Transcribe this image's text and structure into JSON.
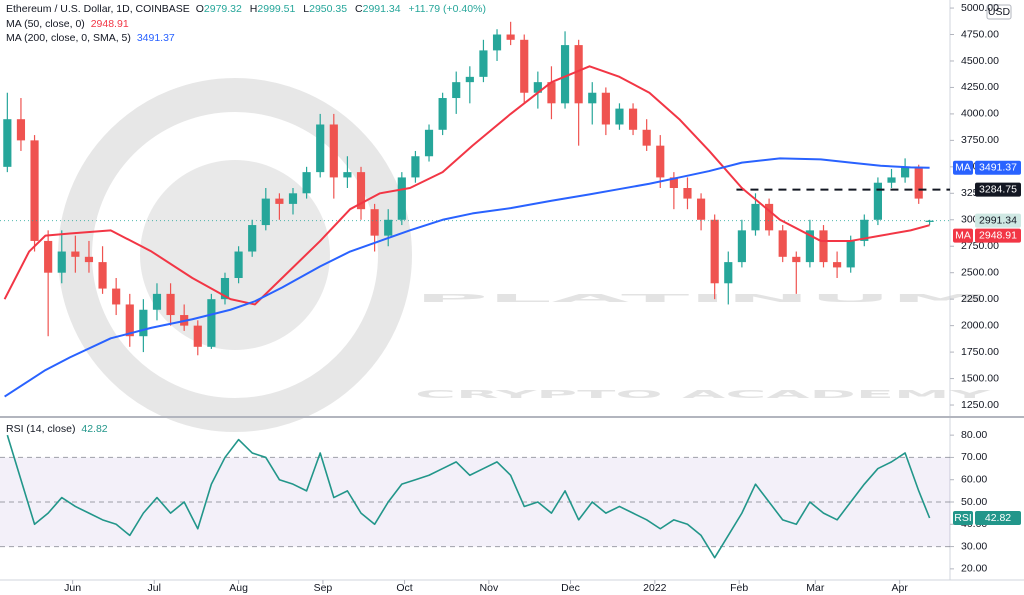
{
  "chart_data": [
    {
      "type": "candlestick",
      "title": "Ethereum / U.S. Dollar, 1D, COINBASE",
      "ohlc_prefixes": [
        "O",
        "H",
        "L",
        "C"
      ],
      "change": "+11.79 (+0.40%)",
      "unit": "USD",
      "watermark": [
        "PLATINUM",
        "CRYPTO ACADEMY"
      ],
      "up_color": "#26a69a",
      "down_color": "#ef5350",
      "xlim": [
        -0.7,
        348.5
      ],
      "ylim": [
        1203,
        5076
      ],
      "yticks": [
        {
          "value": 1250,
          "label": "1250.00"
        },
        {
          "value": 1500,
          "label": "1500.00"
        },
        {
          "value": 1750,
          "label": "1750.00"
        },
        {
          "value": 2000,
          "label": "2000.00"
        },
        {
          "value": 2250,
          "label": "2250.00"
        },
        {
          "value": 2500,
          "label": "2500.00"
        },
        {
          "value": 2750,
          "label": "2750.00"
        },
        {
          "value": 3000,
          "label": "3000.00"
        },
        {
          "value": 3250,
          "label": "3250.00"
        },
        {
          "value": 3500,
          "label": "3500.00"
        },
        {
          "value": 3750,
          "label": "3750.00"
        },
        {
          "value": 4000,
          "label": "4000.00"
        },
        {
          "value": 4250,
          "label": "4250.00"
        },
        {
          "value": 4500,
          "label": "4500.00"
        },
        {
          "value": 4750,
          "label": "4750.00"
        },
        {
          "value": 5000,
          "label": "5000.00"
        }
      ],
      "x": [
        2,
        7,
        12,
        17,
        22,
        27,
        32,
        37,
        42,
        47,
        52,
        57,
        62,
        67,
        72,
        77,
        82,
        87,
        92,
        97,
        102,
        107,
        112,
        117,
        122,
        127,
        132,
        137,
        142,
        147,
        152,
        157,
        162,
        167,
        172,
        177,
        182,
        187,
        192,
        197,
        202,
        207,
        212,
        217,
        222,
        227,
        232,
        237,
        242,
        247,
        252,
        257,
        262,
        267,
        272,
        277,
        282,
        287,
        292,
        297,
        302,
        307,
        312,
        317,
        322,
        327,
        332,
        337,
        341
      ],
      "open": [
        3500,
        3950,
        3750,
        2800,
        2500,
        2700,
        2650,
        2600,
        2350,
        2200,
        1900,
        2150,
        2300,
        2100,
        2000,
        1800,
        2250,
        2450,
        2700,
        2950,
        3200,
        3150,
        3250,
        3450,
        3900,
        3400,
        3450,
        3100,
        2850,
        3000,
        3400,
        3600,
        3850,
        4150,
        4300,
        4350,
        4600,
        4750,
        4700,
        4200,
        4300,
        4100,
        4650,
        4100,
        4200,
        3900,
        4050,
        3850,
        3700,
        3400,
        3300,
        3200,
        3000,
        2400,
        2600,
        2900,
        3150,
        2900,
        2650,
        2600,
        2900,
        2600,
        2550,
        2800,
        3000,
        3350,
        3400,
        3500,
        2979.32
      ],
      "high": [
        4200,
        4150,
        3800,
        2900,
        2900,
        2850,
        2800,
        2750,
        2450,
        2300,
        2250,
        2400,
        2400,
        2200,
        2050,
        2300,
        2500,
        2750,
        3000,
        3300,
        3250,
        3300,
        3500,
        4000,
        4000,
        3600,
        3500,
        3150,
        3100,
        3450,
        3650,
        3900,
        4200,
        4400,
        4450,
        4700,
        4800,
        4870,
        4750,
        4400,
        4450,
        4780,
        4700,
        4300,
        4250,
        4100,
        4100,
        3950,
        3800,
        3450,
        3400,
        3250,
        3050,
        2700,
        3000,
        3250,
        3200,
        2950,
        2700,
        3000,
        2950,
        2700,
        2850,
        3050,
        3400,
        3480,
        3580,
        3520,
        2999.51
      ],
      "low": [
        3450,
        3650,
        2700,
        1900,
        2400,
        2500,
        2500,
        2300,
        2100,
        1800,
        1750,
        2050,
        2000,
        1950,
        1720,
        1780,
        2200,
        2400,
        2650,
        2900,
        3000,
        3050,
        3200,
        3400,
        3200,
        3300,
        3000,
        2700,
        2750,
        2950,
        3350,
        3550,
        3800,
        4000,
        4100,
        4300,
        4500,
        4650,
        4100,
        4050,
        3950,
        4050,
        3700,
        3900,
        3800,
        3850,
        3800,
        3650,
        3300,
        3100,
        3100,
        2900,
        2250,
        2200,
        2550,
        2850,
        2850,
        2600,
        2300,
        2550,
        2550,
        2450,
        2500,
        2750,
        2950,
        3300,
        3350,
        3150,
        2950.35
      ],
      "close": [
        3950,
        3750,
        2800,
        2500,
        2700,
        2650,
        2600,
        2350,
        2200,
        1900,
        2150,
        2300,
        2100,
        2000,
        1800,
        2250,
        2450,
        2700,
        2950,
        3200,
        3150,
        3250,
        3450,
        3900,
        3400,
        3450,
        3100,
        2850,
        3000,
        3400,
        3600,
        3850,
        4150,
        4300,
        4350,
        4600,
        4750,
        4700,
        4200,
        4300,
        4100,
        4650,
        4100,
        4200,
        3900,
        4050,
        3850,
        3700,
        3400,
        3300,
        3200,
        3000,
        2400,
        2600,
        2900,
        3150,
        2900,
        2650,
        2600,
        2900,
        2600,
        2550,
        2800,
        3000,
        3350,
        3400,
        3500,
        3200,
        2991.34
      ],
      "series": [
        {
          "name": "MA (50, close, 0)",
          "tag_label": "MA",
          "color": "#f23645",
          "x": [
            1,
            10,
            16,
            25,
            40,
            55,
            70,
            84,
            93,
            103,
            117,
            128,
            139,
            150,
            162,
            173,
            187,
            202,
            216,
            227,
            238,
            249,
            260,
            272,
            286,
            301,
            312,
            323,
            334,
            341
          ],
          "values": [
            2250,
            2700,
            2850,
            2870,
            2900,
            2700,
            2450,
            2250,
            2200,
            2450,
            2800,
            3100,
            3250,
            3300,
            3450,
            3700,
            4000,
            4300,
            4450,
            4350,
            4200,
            3950,
            3650,
            3300,
            3000,
            2800,
            2800,
            2850,
            2900,
            2948.91
          ]
        },
        {
          "name": "MA (200, close, 0, SMA, 5)",
          "tag_label": "MA",
          "color": "#2962ff",
          "x": [
            1,
            10,
            16,
            25,
            40,
            55,
            70,
            84,
            93,
            103,
            117,
            128,
            139,
            150,
            162,
            173,
            187,
            202,
            216,
            227,
            238,
            249,
            260,
            272,
            286,
            301,
            312,
            323,
            334,
            341
          ],
          "values": [
            1330,
            1480,
            1580,
            1700,
            1880,
            1980,
            2060,
            2150,
            2230,
            2360,
            2560,
            2700,
            2800,
            2900,
            3000,
            3060,
            3110,
            3180,
            3240,
            3290,
            3340,
            3400,
            3460,
            3540,
            3580,
            3570,
            3540,
            3510,
            3495,
            3491.37
          ]
        }
      ],
      "level": {
        "value": 3284.75,
        "x_start": 270,
        "color": "#131722"
      }
    },
    {
      "type": "line",
      "title": "RSI (14, close)",
      "xlim": [
        -0.7,
        348.5
      ],
      "xticks": [
        {
          "value": 26,
          "label": "Jun"
        },
        {
          "value": 56,
          "label": "Jul"
        },
        {
          "value": 87,
          "label": "Aug"
        },
        {
          "value": 118,
          "label": "Sep"
        },
        {
          "value": 148,
          "label": "Oct"
        },
        {
          "value": 179,
          "label": "Nov"
        },
        {
          "value": 209,
          "label": "Dec"
        },
        {
          "value": 240,
          "label": "2022"
        },
        {
          "value": 271,
          "label": "Feb"
        },
        {
          "value": 299,
          "label": "Mar"
        },
        {
          "value": 330,
          "label": "Apr"
        }
      ],
      "ylim": [
        15,
        85
      ],
      "yticks": [
        {
          "value": 20,
          "label": "20.00"
        },
        {
          "value": 30,
          "label": "30.00"
        },
        {
          "value": 40,
          "label": "40.00"
        },
        {
          "value": 50,
          "label": "50.00"
        },
        {
          "value": 60,
          "label": "60.00"
        },
        {
          "value": 70,
          "label": "70.00"
        },
        {
          "value": 80,
          "label": "80.00"
        }
      ],
      "band": [
        30,
        70
      ],
      "band_color": "#7e57c2",
      "levels": [
        30,
        50,
        70
      ],
      "series": [
        {
          "name": "RSI",
          "tag_label": "RSI",
          "color": "#22968a",
          "x": [
            2,
            7,
            12,
            17,
            22,
            27,
            32,
            37,
            42,
            47,
            52,
            57,
            62,
            67,
            72,
            77,
            82,
            87,
            92,
            97,
            102,
            107,
            112,
            117,
            122,
            127,
            132,
            137,
            142,
            147,
            152,
            157,
            162,
            167,
            172,
            177,
            182,
            187,
            192,
            197,
            202,
            207,
            212,
            217,
            222,
            227,
            232,
            237,
            242,
            247,
            252,
            257,
            262,
            267,
            272,
            277,
            282,
            287,
            292,
            297,
            302,
            307,
            312,
            317,
            322,
            327,
            332,
            337,
            341
          ],
          "values": [
            80,
            60,
            40,
            45,
            52,
            48,
            45,
            42,
            40,
            35,
            45,
            52,
            45,
            50,
            38,
            58,
            70,
            78,
            72,
            70,
            60,
            58,
            55,
            72,
            52,
            55,
            45,
            40,
            50,
            58,
            60,
            62,
            65,
            68,
            62,
            65,
            68,
            62,
            48,
            50,
            45,
            55,
            42,
            50,
            45,
            48,
            45,
            42,
            38,
            42,
            40,
            35,
            25,
            35,
            45,
            58,
            50,
            42,
            40,
            50,
            45,
            42,
            50,
            58,
            65,
            68,
            72,
            55,
            42.82
          ]
        }
      ]
    }
  ]
}
